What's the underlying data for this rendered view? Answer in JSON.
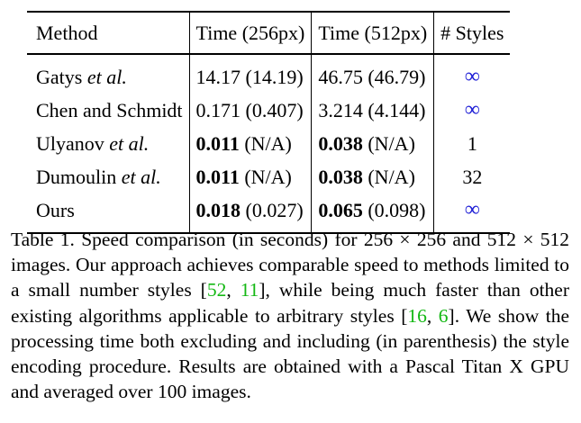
{
  "table": {
    "headers": [
      "Method",
      "Time (256px)",
      "Time (512px)",
      "# Styles"
    ],
    "rows": [
      {
        "method": "Gatys",
        "method_suffix": "et al.",
        "t256": {
          "value": "14.17",
          "paren": "(14.19)",
          "bold": false
        },
        "t512": {
          "value": "46.75",
          "paren": "(46.79)",
          "bold": false
        },
        "styles": "∞"
      },
      {
        "method": "Chen and Schmidt",
        "method_suffix": "",
        "t256": {
          "value": "0.171",
          "paren": "(0.407)",
          "bold": false
        },
        "t512": {
          "value": "3.214",
          "paren": "(4.144)",
          "bold": false
        },
        "styles": "∞"
      },
      {
        "method": "Ulyanov",
        "method_suffix": "et al.",
        "t256": {
          "value": "0.011",
          "paren": "(N/A)",
          "bold": true
        },
        "t512": {
          "value": "0.038",
          "paren": "(N/A)",
          "bold": true
        },
        "styles": "1"
      },
      {
        "method": "Dumoulin",
        "method_suffix": "et al.",
        "t256": {
          "value": "0.011",
          "paren": "(N/A)",
          "bold": true
        },
        "t512": {
          "value": "0.038",
          "paren": "(N/A)",
          "bold": true
        },
        "styles": "32"
      },
      {
        "method": "Ours",
        "method_suffix": "",
        "t256": {
          "value": "0.018",
          "paren": "(0.027)",
          "bold": true
        },
        "t512": {
          "value": "0.065",
          "paren": "(0.098)",
          "bold": true
        },
        "styles": "∞"
      }
    ]
  },
  "caption": {
    "label": "Table 1.",
    "text_1": "Speed comparison (in seconds) for 256 × 256 and 512 × 512 images. Our approach achieves comparable speed to methods limited to a small number styles [",
    "cite_1": "52",
    "sep_1": ", ",
    "cite_2": "11",
    "text_2": "], while being much faster than other existing algorithms applicable to arbitrary styles [",
    "cite_3": "16",
    "sep_2": ", ",
    "cite_4": "6",
    "text_3": "]. We show the processing time both excluding and including (in parenthesis) the style encoding procedure.  Results are obtained with a Pascal Titan X GPU and averaged over 100 images."
  },
  "colors": {
    "infinity": "#1f1fd6",
    "citation": "#14b814"
  }
}
